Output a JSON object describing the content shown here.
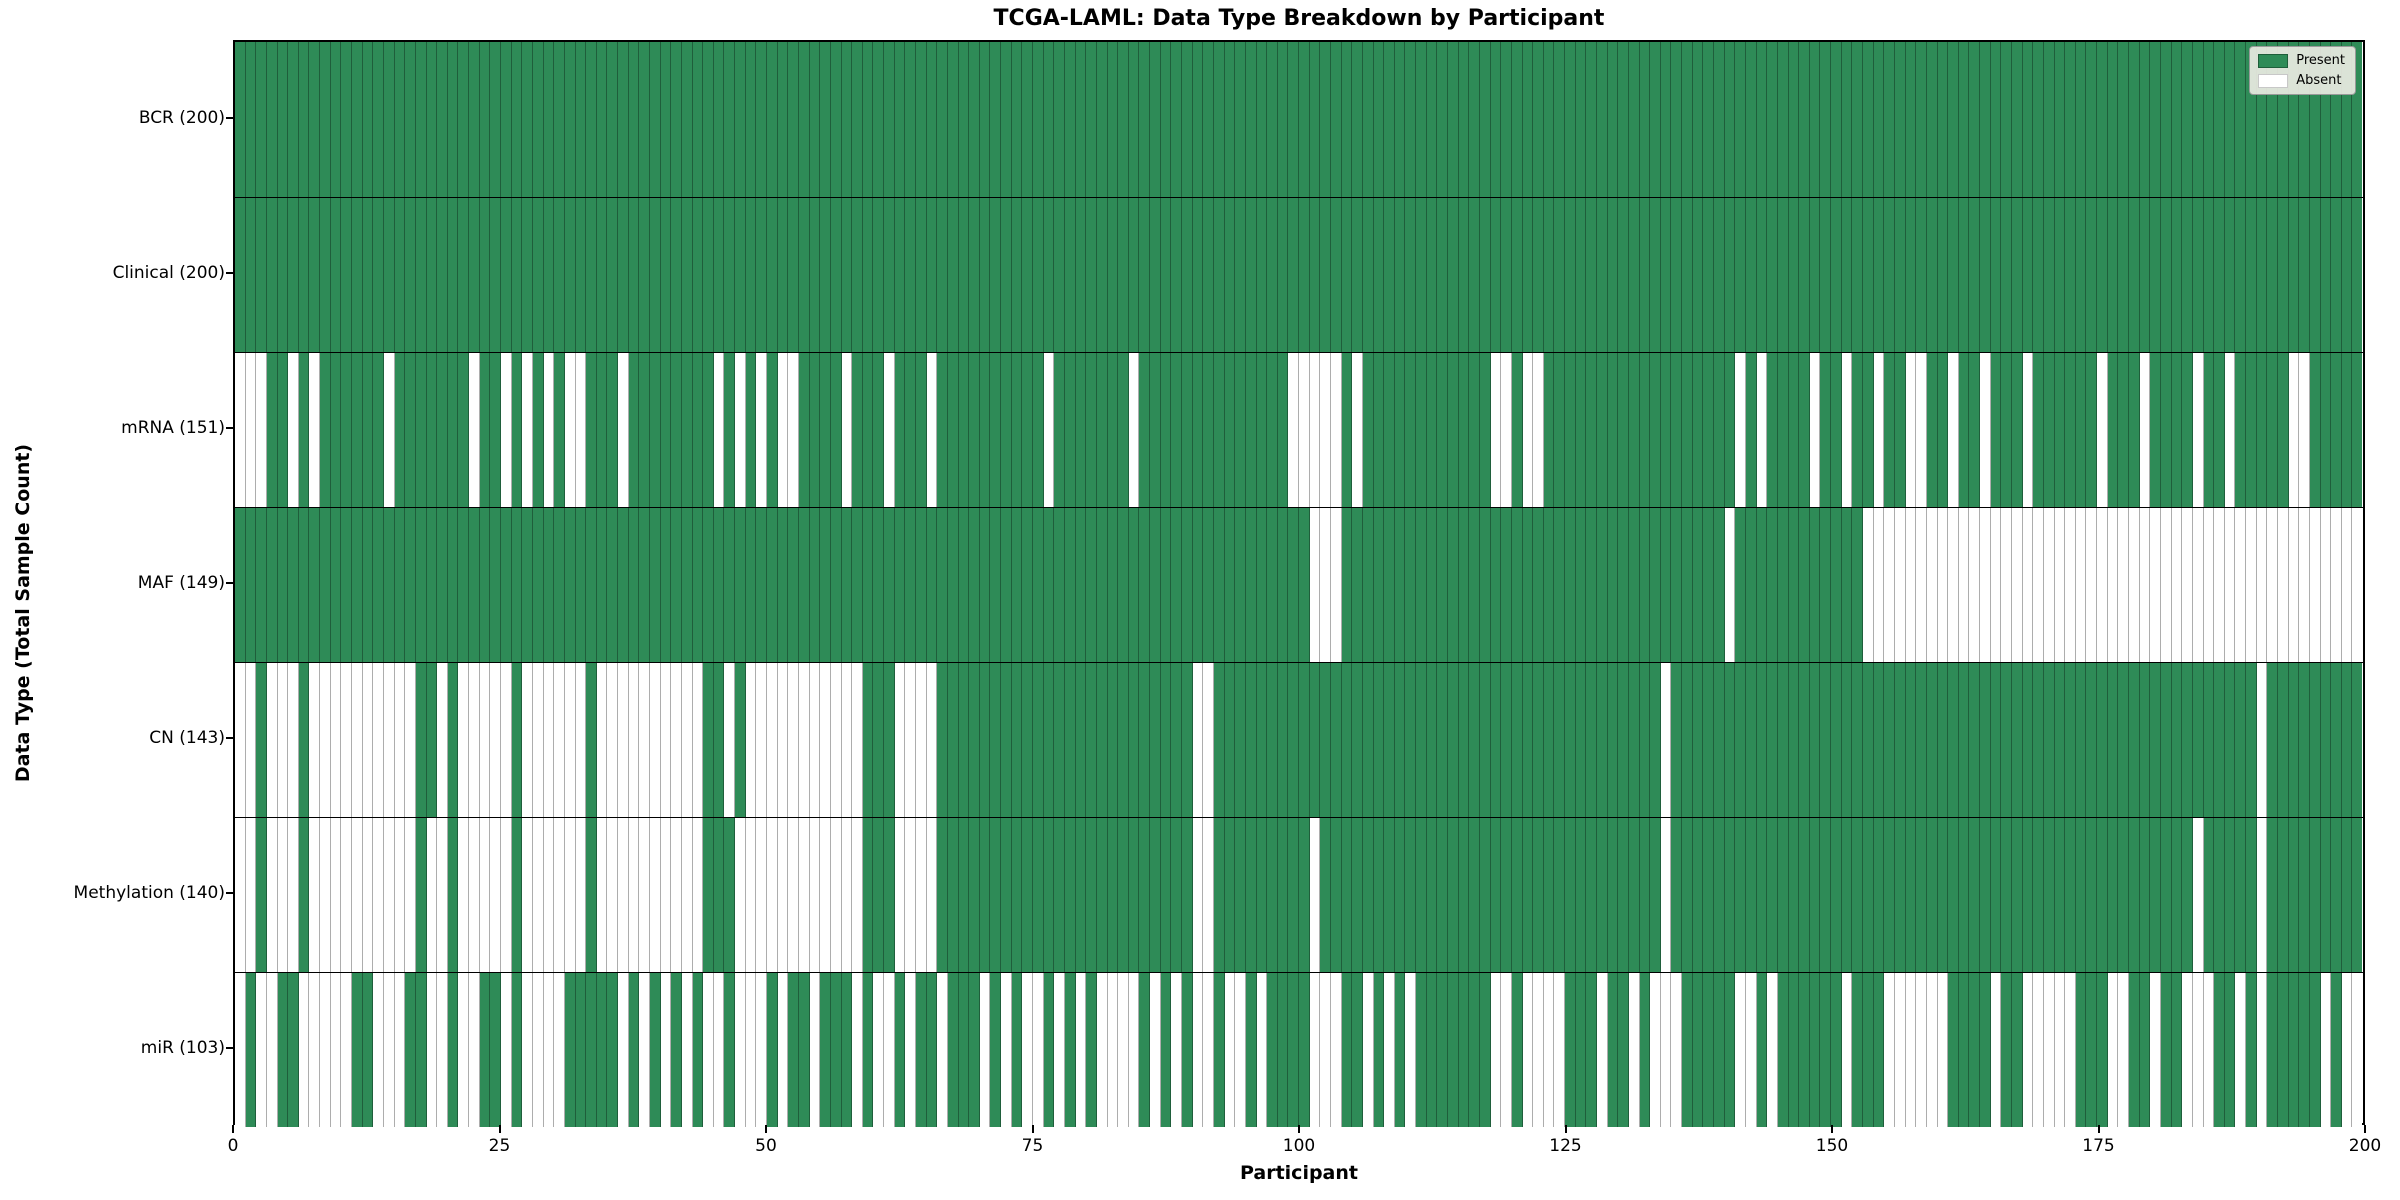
{
  "title": "TCGA-LAML: Data Type Breakdown by Participant",
  "x_axis_label": "Participant",
  "y_axis_label": "Data Type (Total Sample Count)",
  "legend": {
    "present_label": "Present",
    "absent_label": "Absent"
  },
  "colors": {
    "present": "#2E8B57",
    "absent": "#FFFFFF",
    "grid_line": "rgba(0,0,0,0.32)",
    "row_separator": "#000000",
    "legend_bg": "#EAEAE2"
  },
  "chart_data": {
    "type": "heatmap",
    "title": "TCGA-LAML: Data Type Breakdown by Participant",
    "xlabel": "Participant",
    "ylabel": "Data Type (Total Sample Count)",
    "x_range": [
      0,
      200
    ],
    "n_participants": 200,
    "x_ticks": [
      0,
      25,
      50,
      75,
      100,
      125,
      150,
      175,
      200
    ],
    "grid": true,
    "legend_position": "upper right",
    "legend_entries": [
      "Present",
      "Absent"
    ],
    "value_encoding": {
      "present": 1,
      "absent": 0
    },
    "rows": [
      {
        "label": "BCR (200)",
        "name": "BCR",
        "present_count": 200,
        "absent_participants": []
      },
      {
        "label": "Clinical (200)",
        "name": "Clinical",
        "present_count": 200,
        "absent_participants": []
      },
      {
        "label": "mRNA (151)",
        "name": "mRNA",
        "present_count": 151,
        "absent_participants": [
          0,
          1,
          2,
          5,
          7,
          14,
          22,
          25,
          27,
          29,
          31,
          32,
          36,
          45,
          47,
          49,
          51,
          52,
          57,
          61,
          65,
          76,
          84,
          99,
          100,
          101,
          102,
          103,
          105,
          118,
          119,
          121,
          122,
          141,
          143,
          148,
          151,
          154,
          157,
          158,
          161,
          164,
          168,
          175,
          179,
          184,
          187,
          193,
          194
        ]
      },
      {
        "label": "MAF (149)",
        "name": "MAF",
        "present_count": 149,
        "absent_participants": [
          101,
          102,
          103,
          140,
          153,
          154,
          155,
          156,
          157,
          158,
          159,
          160,
          161,
          162,
          163,
          164,
          165,
          166,
          167,
          168,
          169,
          170,
          171,
          172,
          173,
          174,
          175,
          176,
          177,
          178,
          179,
          180,
          181,
          182,
          183,
          184,
          185,
          186,
          187,
          188,
          189,
          190,
          191,
          192,
          193,
          194,
          195,
          196,
          197,
          198,
          199
        ]
      },
      {
        "label": "CN (143)",
        "name": "CN",
        "present_count": 143,
        "absent_participants": [
          0,
          1,
          3,
          4,
          5,
          7,
          8,
          9,
          10,
          11,
          12,
          13,
          14,
          15,
          16,
          19,
          21,
          22,
          23,
          24,
          25,
          27,
          28,
          29,
          30,
          31,
          32,
          34,
          35,
          36,
          37,
          38,
          39,
          40,
          41,
          42,
          43,
          46,
          48,
          49,
          50,
          51,
          52,
          53,
          54,
          55,
          56,
          57,
          58,
          62,
          63,
          64,
          65,
          90,
          91,
          134,
          190
        ]
      },
      {
        "label": "Methylation (140)",
        "name": "Methylation",
        "present_count": 140,
        "absent_participants": [
          0,
          1,
          3,
          4,
          5,
          7,
          8,
          9,
          10,
          11,
          12,
          13,
          14,
          15,
          16,
          18,
          19,
          21,
          22,
          23,
          24,
          25,
          27,
          28,
          29,
          30,
          31,
          32,
          34,
          35,
          36,
          37,
          38,
          39,
          40,
          41,
          42,
          43,
          47,
          48,
          49,
          50,
          51,
          52,
          53,
          54,
          55,
          56,
          57,
          58,
          62,
          63,
          64,
          65,
          90,
          91,
          101,
          134,
          184,
          190
        ]
      },
      {
        "label": "miR (103)",
        "name": "miR",
        "present_count": 103,
        "absent_participants": [
          0,
          2,
          3,
          6,
          7,
          8,
          9,
          10,
          13,
          14,
          15,
          18,
          19,
          21,
          22,
          25,
          27,
          28,
          29,
          30,
          36,
          38,
          40,
          42,
          44,
          45,
          47,
          48,
          49,
          51,
          54,
          58,
          60,
          61,
          63,
          66,
          70,
          72,
          74,
          75,
          77,
          79,
          81,
          82,
          83,
          84,
          86,
          88,
          90,
          91,
          93,
          94,
          96,
          101,
          102,
          103,
          106,
          108,
          110,
          118,
          119,
          121,
          122,
          123,
          124,
          128,
          131,
          133,
          134,
          135,
          141,
          142,
          144,
          151,
          155,
          156,
          157,
          158,
          159,
          160,
          165,
          168,
          169,
          170,
          171,
          172,
          176,
          177,
          180,
          183,
          184,
          185,
          188,
          190,
          196,
          198,
          199
        ]
      }
    ]
  }
}
